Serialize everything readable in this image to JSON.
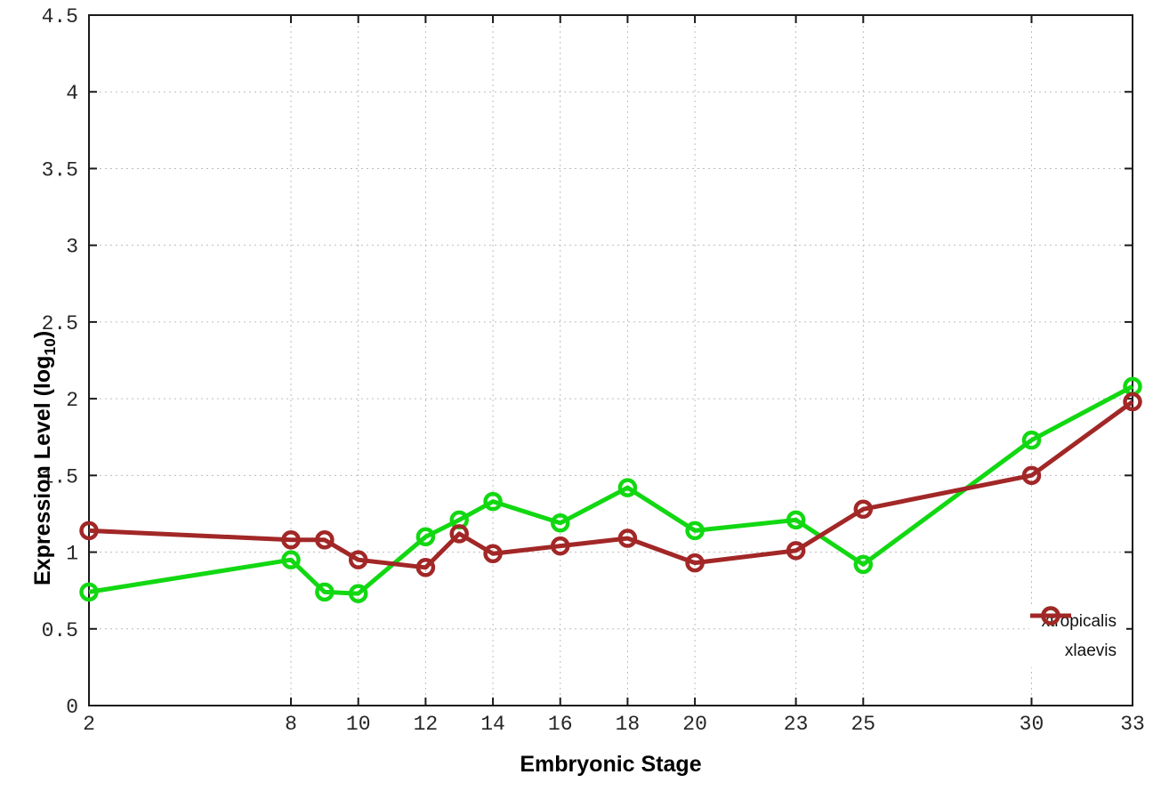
{
  "chart_data": {
    "type": "line",
    "xlabel": "Embryonic Stage",
    "ylabel": "Expression Level (log10)",
    "ylabel_parts": {
      "main": "Expression Level (log",
      "sub": "10",
      "close": ")"
    },
    "xlim": [
      2,
      33
    ],
    "ylim": [
      0,
      4.5
    ],
    "x_ticks": [
      2,
      8,
      10,
      12,
      14,
      16,
      18,
      20,
      23,
      25,
      30,
      33
    ],
    "y_ticks": [
      "0",
      "0.5",
      "1",
      "1.5",
      "2",
      "2.5",
      "3",
      "3.5",
      "4",
      "4.5"
    ],
    "grid": true,
    "legend_position": "inside-bottom-right",
    "x": [
      2,
      8,
      9,
      10,
      12,
      13,
      14,
      16,
      18,
      20,
      23,
      25,
      30,
      33
    ],
    "series": [
      {
        "name": "xtropicalis",
        "color": "#12d812",
        "values": [
          0.74,
          0.95,
          0.74,
          0.73,
          1.1,
          1.21,
          1.33,
          1.19,
          1.42,
          1.14,
          1.21,
          0.92,
          1.73,
          2.08
        ]
      },
      {
        "name": "xlaevis",
        "color": "#a22727",
        "values": [
          1.14,
          1.08,
          1.08,
          0.95,
          0.9,
          1.12,
          0.99,
          1.04,
          1.09,
          0.93,
          1.01,
          1.28,
          1.5,
          1.98
        ]
      }
    ]
  },
  "style_colors": {
    "axis": "#1a1a1a",
    "grid": "#bcbcbc",
    "tick_text": "#262626"
  }
}
